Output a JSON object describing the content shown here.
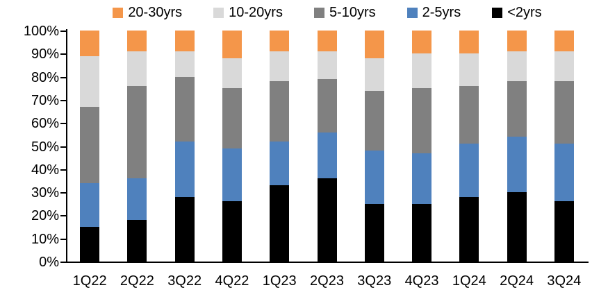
{
  "chart_data": {
    "type": "bar",
    "subtype": "stacked-100-percent",
    "title": "",
    "xlabel": "",
    "ylabel": "",
    "grid": false,
    "categories": [
      "1Q22",
      "2Q22",
      "3Q22",
      "4Q22",
      "1Q23",
      "2Q23",
      "3Q23",
      "4Q23",
      "1Q24",
      "2Q24",
      "3Q24"
    ],
    "series": [
      {
        "name": "<2yrs",
        "color": "#000000",
        "values": [
          15,
          18,
          28,
          26,
          33,
          36,
          25,
          25,
          28,
          30,
          26
        ]
      },
      {
        "name": "2-5yrs",
        "color": "#4F81BD",
        "values": [
          19,
          18,
          24,
          23,
          19,
          20,
          23,
          22,
          23,
          24,
          25
        ]
      },
      {
        "name": "5-10yrs",
        "color": "#808080",
        "values": [
          33,
          40,
          28,
          26,
          26,
          23,
          26,
          28,
          25,
          24,
          27
        ]
      },
      {
        "name": "10-20yrs",
        "color": "#D9D9D9",
        "values": [
          22,
          15,
          11,
          13,
          13,
          12,
          14,
          15,
          14,
          13,
          13
        ]
      },
      {
        "name": "20-30yrs",
        "color": "#F4964A",
        "values": [
          11,
          9,
          9,
          12,
          9,
          9,
          12,
          10,
          10,
          9,
          9
        ]
      }
    ],
    "stack_order_bottom_to_top": [
      "<2yrs",
      "2-5yrs",
      "5-10yrs",
      "10-20yrs",
      "20-30yrs"
    ],
    "legend": {
      "position": "top",
      "order": [
        "20-30yrs",
        "10-20yrs",
        "5-10yrs",
        "2-5yrs",
        "<2yrs"
      ]
    },
    "y_axis": {
      "min": 0,
      "max": 100,
      "unit": "%",
      "ticks": [
        "0%",
        "10%",
        "20%",
        "30%",
        "40%",
        "50%",
        "60%",
        "70%",
        "80%",
        "90%",
        "100%"
      ]
    },
    "colors": {
      "axis": "#000000",
      "background": "#FFFFFF",
      "text": "#000000"
    }
  }
}
